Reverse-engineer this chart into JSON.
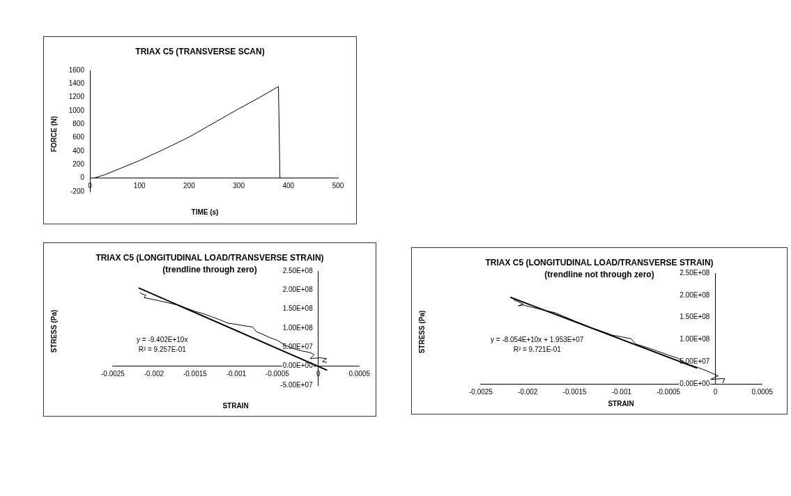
{
  "chart_data": [
    {
      "type": "line",
      "title": "TRIAX C5 (TRANSVERSE SCAN)",
      "xlabel": "TIME (s)",
      "ylabel": "FORCE (N)",
      "x": [
        8,
        30,
        60,
        100,
        150,
        200,
        250,
        300,
        340,
        380,
        383,
        386
      ],
      "series": [
        {
          "color": "#000000",
          "values": [
            0,
            50,
            140,
            260,
            430,
            610,
            820,
            1030,
            1190,
            1360,
            0,
            0
          ]
        }
      ],
      "xlim": [
        0,
        500
      ],
      "xticks": [
        0,
        100,
        200,
        300,
        400,
        500
      ],
      "ylim": [
        -200,
        1600
      ],
      "yticks": [
        -200,
        0,
        200,
        400,
        600,
        800,
        1000,
        1200,
        1400,
        1600
      ]
    },
    {
      "type": "line",
      "title": "TRIAX C5 (LONGITUDINAL LOAD/TRANSVERSE STRAIN)",
      "subtitle": "(trendline through zero)",
      "xlabel": "STRAIN",
      "ylabel": "STRESS (Pa)",
      "annotations": [
        "y = -9.402E+10x",
        "R² = 9.257E-01"
      ],
      "series": [
        {
          "color": "#000000",
          "x": [
            -0.00217,
            -0.00215,
            -0.0021,
            -0.00212,
            -0.00205,
            -0.0019,
            -0.0017,
            -0.0016,
            -0.0015,
            -0.0014,
            -0.0013,
            -0.0012,
            -0.0011,
            -0.001,
            -0.0009,
            -0.0008,
            -0.00075,
            -0.0007,
            -0.0006,
            -0.0005,
            -0.0004,
            -0.0003,
            -0.0002,
            -0.0001,
            -5e-05,
            -0.0001,
            2e-05,
            0.0001,
            5e-05,
            0.0001
          ],
          "values": [
            193000000,
            190000000,
            187000000,
            180000000,
            177000000,
            170000000,
            160000000,
            152000000,
            144000000,
            138000000,
            130000000,
            122000000,
            113000000,
            110000000,
            106000000,
            103000000,
            90000000,
            86000000,
            76000000,
            68000000,
            55000000,
            46000000,
            40000000,
            36000000,
            30000000,
            20000000,
            22000000,
            20000000,
            12000000,
            10000000
          ]
        },
        {
          "type": "line",
          "color": "#000000",
          "x": [
            -0.00218,
            0.0001
          ],
          "values": [
            205000000,
            -10000000
          ]
        }
      ],
      "xlim": [
        -0.0025,
        0.0005
      ],
      "xticks": [
        -0.0025,
        -0.002,
        -0.0015,
        -0.001,
        -0.0005,
        0,
        0.0005
      ],
      "ylim": [
        -50000000,
        250000000
      ],
      "yticks": [
        {
          "value": -50000000,
          "label": "-5.00E+07"
        },
        {
          "value": 0,
          "label": "0.00E+00"
        },
        {
          "value": 50000000,
          "label": "5.00E+07"
        },
        {
          "value": 100000000,
          "label": "1.00E+08"
        },
        {
          "value": 150000000,
          "label": "1.50E+08"
        },
        {
          "value": 200000000,
          "label": "2.00E+08"
        },
        {
          "value": 250000000,
          "label": "2.50E+08"
        }
      ]
    },
    {
      "type": "line",
      "title": "TRIAX C5 (LONGITUDINAL LOAD/TRANSVERSE STRAIN)",
      "subtitle": "(trendline not through zero)",
      "xlabel": "STRAIN",
      "ylabel": "STRESS (Pa)",
      "annotations": [
        "y = -8.054E+10x + 1.953E+07",
        "R² = 9.721E-01"
      ],
      "series": [
        {
          "color": "#000000",
          "x": [
            -0.00215,
            -0.0021,
            -0.00205,
            -0.0021,
            -0.00205,
            -0.0019,
            -0.0017,
            -0.0015,
            -0.0013,
            -0.0012,
            -0.0011,
            -0.001,
            -0.0009,
            -0.00085,
            -0.0007,
            -0.0005,
            -0.0004,
            -0.0003,
            -0.0002,
            -0.0001,
            3e-05,
            -5e-05,
            0.0001,
            8e-05
          ],
          "values": [
            190000000,
            185000000,
            180000000,
            176000000,
            178000000,
            170000000,
            160000000,
            142000000,
            125000000,
            118000000,
            110000000,
            106000000,
            102000000,
            90000000,
            80000000,
            65000000,
            58000000,
            45000000,
            38000000,
            30000000,
            18000000,
            10000000,
            12000000,
            2000000
          ]
        },
        {
          "type": "line",
          "color": "#000000",
          "x": [
            -0.00218,
            -0.0002
          ],
          "values": [
            195000000,
            36000000
          ]
        }
      ],
      "xlim": [
        -0.0025,
        0.0005
      ],
      "xticks": [
        -0.0025,
        -0.002,
        -0.0015,
        -0.001,
        -0.0005,
        0,
        0.0005
      ],
      "ylim": [
        0,
        250000000
      ],
      "yticks": [
        {
          "value": 0,
          "label": "0.00E+00"
        },
        {
          "value": 50000000,
          "label": "5.00E+07"
        },
        {
          "value": 100000000,
          "label": "1.00E+08"
        },
        {
          "value": 150000000,
          "label": "1.50E+08"
        },
        {
          "value": 200000000,
          "label": "2.00E+08"
        },
        {
          "value": 250000000,
          "label": "2.50E+08"
        }
      ]
    }
  ]
}
